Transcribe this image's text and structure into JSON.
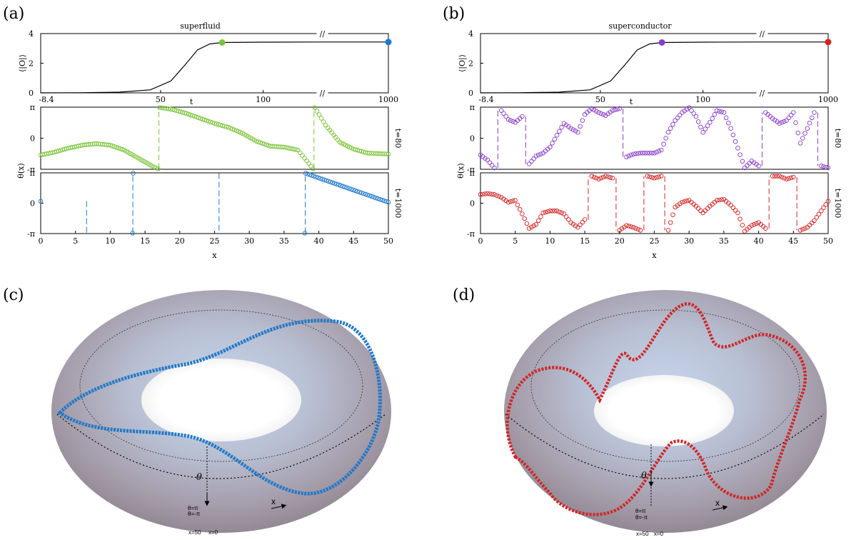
{
  "figure": {
    "panel_labels": [
      "(a)",
      "(b)",
      "(c)",
      "(d)"
    ],
    "colors": {
      "green": "#7cc43b",
      "blue": "#1f78c8",
      "purple": "#8a3ec8",
      "red": "#d02525"
    }
  },
  "chart_data": [
    {
      "type": "line",
      "panel": "a-top",
      "title": "superfluid",
      "xlabel": "t",
      "ylabel": "⟨|O|⟩",
      "x_ticks": [
        "-8.4",
        "50",
        "100",
        "1000"
      ],
      "x_break": "//",
      "ylim": [
        0,
        4
      ],
      "y_ticks": [
        "0",
        "2",
        "4"
      ],
      "series": [
        {
          "x": [
            -8.4,
            10,
            30,
            45,
            55,
            62,
            68,
            74,
            80,
            100,
            120,
            1000
          ],
          "y": [
            0.0,
            0.01,
            0.05,
            0.2,
            0.8,
            1.9,
            2.9,
            3.3,
            3.4,
            3.42,
            3.43,
            3.43
          ]
        }
      ],
      "markers": [
        {
          "t": 80,
          "value": 3.4,
          "color": "#7cc43b"
        },
        {
          "t": 1000,
          "value": 3.43,
          "color": "#1f78c8"
        }
      ]
    },
    {
      "type": "scatter",
      "panel": "a-mid",
      "ylabel": "θ(x)",
      "right_label": "t=80",
      "y_ticks": [
        "π",
        "0",
        "-π"
      ],
      "ylim": [
        -3.1416,
        3.1416
      ],
      "color": "#7cc43b",
      "x": [
        0,
        2,
        4,
        6,
        8,
        10,
        12,
        14,
        16,
        16.9,
        17.1,
        19,
        21,
        23,
        25,
        27,
        29,
        31,
        33,
        35,
        37,
        39.2,
        39.4,
        41,
        43,
        45,
        47,
        50
      ],
      "y": [
        -1.7,
        -1.4,
        -1.0,
        -0.7,
        -0.55,
        -0.7,
        -1.2,
        -2.0,
        -2.8,
        -3.1,
        3.1,
        2.9,
        2.5,
        2.0,
        1.5,
        1.1,
        0.5,
        -0.3,
        -0.8,
        -0.9,
        -1.2,
        -3.1,
        3.1,
        1.3,
        -0.4,
        -1.1,
        -1.5,
        -1.6
      ],
      "jumps": [
        17.0,
        39.3
      ]
    },
    {
      "type": "scatter",
      "panel": "a-bot",
      "xlabel": "x",
      "right_label": "t=1000",
      "x_ticks": [
        "0",
        "5",
        "10",
        "15",
        "20",
        "25",
        "30",
        "35",
        "40",
        "45",
        "50"
      ],
      "y_ticks": [
        "π",
        "0",
        "-π"
      ],
      "ylim": [
        -3.1416,
        3.1416
      ],
      "color": "#1f78c8",
      "x": [
        0,
        13.2,
        13.3,
        38.0,
        38.1,
        50
      ],
      "y": [
        0.2,
        -3.1,
        3.1,
        -3.1,
        3.1,
        0.1
      ],
      "jumps": [
        13.25,
        38.05
      ]
    },
    {
      "type": "line",
      "panel": "b-top",
      "title": "superconductor",
      "xlabel": "t",
      "ylabel": "⟨|O|⟩",
      "x_ticks": [
        "-8.4",
        "50",
        "100",
        "1000"
      ],
      "x_break": "//",
      "ylim": [
        0,
        4
      ],
      "y_ticks": [
        "0",
        "2",
        "4"
      ],
      "series": [
        {
          "x": [
            -8.4,
            10,
            30,
            45,
            55,
            62,
            68,
            74,
            80,
            100,
            120,
            1000
          ],
          "y": [
            0.0,
            0.01,
            0.05,
            0.2,
            0.8,
            1.9,
            2.9,
            3.3,
            3.4,
            3.42,
            3.43,
            3.43
          ]
        }
      ],
      "markers": [
        {
          "t": 80,
          "value": 3.4,
          "color": "#8a3ec8"
        },
        {
          "t": 1000,
          "value": 3.43,
          "color": "#d02525"
        }
      ]
    },
    {
      "type": "scatter",
      "panel": "b-mid",
      "ylabel": "θ(x)",
      "right_label": "t=80",
      "y_ticks": [
        "π",
        "0",
        "-π"
      ],
      "ylim": [
        -3.1416,
        3.1416
      ],
      "color": "#8a3ec8",
      "x": [
        0,
        1,
        2,
        3,
        4,
        5,
        6,
        7,
        8,
        9,
        10,
        11,
        12,
        13,
        14,
        15,
        16,
        17,
        18,
        19,
        20,
        21,
        22,
        23,
        24,
        25,
        26,
        27,
        28,
        29,
        30,
        31,
        32,
        33,
        34,
        35,
        36,
        37,
        38,
        39,
        40,
        41,
        42,
        43,
        44,
        45,
        46,
        47,
        48,
        49,
        50
      ],
      "y": [
        -1.7,
        -2.2,
        -3.0,
        2.8,
        1.9,
        1.6,
        2.2,
        -2.6,
        -1.8,
        -1.5,
        -0.9,
        0.3,
        1.5,
        1.0,
        0.6,
        2.4,
        3.0,
        2.6,
        2.3,
        2.8,
        3.0,
        -1.9,
        -1.6,
        -1.5,
        -1.5,
        -1.5,
        -1.2,
        0.6,
        1.8,
        2.6,
        3.1,
        2.2,
        0.6,
        1.6,
        2.8,
        2.6,
        1.0,
        -1.0,
        -3.0,
        -2.3,
        -2.8,
        2.6,
        2.0,
        1.5,
        1.8,
        2.6,
        -0.5,
        1.0,
        2.6,
        -2.8,
        -3.0
      ]
    },
    {
      "type": "scatter",
      "panel": "b-bot",
      "xlabel": "x",
      "right_label": "t=1000",
      "x_ticks": [
        "0",
        "5",
        "10",
        "15",
        "20",
        "25",
        "30",
        "35",
        "40",
        "45",
        "50"
      ],
      "y_ticks": [
        "π",
        "0",
        "-π"
      ],
      "ylim": [
        -3.1416,
        3.1416
      ],
      "color": "#d02525",
      "x": [
        0,
        1,
        2,
        3,
        4,
        5,
        6,
        7,
        8,
        9,
        10,
        11,
        12,
        13,
        14,
        15,
        16,
        17,
        18,
        19,
        20,
        21,
        22,
        23,
        24,
        25,
        26,
        27,
        28,
        29,
        30,
        31,
        32,
        33,
        34,
        35,
        36,
        37,
        38,
        39,
        40,
        41,
        42,
        43,
        44,
        45,
        46,
        47,
        48,
        49,
        50
      ],
      "y": [
        0.9,
        1.0,
        0.9,
        0.6,
        0.1,
        0.3,
        -1.1,
        -2.6,
        -2.2,
        -1.0,
        -0.8,
        -0.8,
        -1.1,
        -2.0,
        -2.5,
        -1.7,
        2.8,
        2.5,
        2.8,
        2.6,
        -2.8,
        -2.3,
        -2.5,
        -2.8,
        2.8,
        2.6,
        2.8,
        -2.8,
        -0.4,
        0.1,
        0.3,
        -0.3,
        -1.0,
        -0.3,
        0.3,
        0.4,
        -0.2,
        -1.0,
        -2.9,
        -2.3,
        -2.0,
        -2.6,
        2.8,
        2.8,
        2.5,
        2.7,
        -2.8,
        -2.5,
        -1.8,
        -0.8,
        0.2
      ]
    }
  ],
  "torus_c": {
    "labels": {
      "theta": "θ",
      "x": "x",
      "theta_pi": "θ=π",
      "theta_minus_pi": "θ=-π",
      "x50": "x=50",
      "x0": "x=0"
    }
  },
  "torus_d": {
    "labels": {
      "theta": "θ",
      "x": "x",
      "theta_pi": "θ=π",
      "theta_minus_pi": "θ=-π",
      "x50": "x=50",
      "x0": "x=0"
    }
  }
}
